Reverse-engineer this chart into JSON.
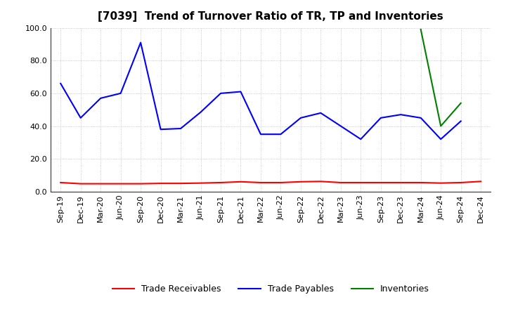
{
  "title": "[7039]  Trend of Turnover Ratio of TR, TP and Inventories",
  "x_labels": [
    "Sep-19",
    "Dec-19",
    "Mar-20",
    "Jun-20",
    "Sep-20",
    "Dec-20",
    "Mar-21",
    "Jun-21",
    "Sep-21",
    "Dec-21",
    "Mar-22",
    "Jun-22",
    "Sep-22",
    "Dec-22",
    "Mar-23",
    "Jun-23",
    "Sep-23",
    "Dec-23",
    "Mar-24",
    "Jun-24",
    "Sep-24",
    "Dec-24"
  ],
  "trade_receivables": [
    5.5,
    4.8,
    4.8,
    4.8,
    4.8,
    5.0,
    5.0,
    5.2,
    5.5,
    6.0,
    5.5,
    5.5,
    6.0,
    6.2,
    5.5,
    5.5,
    5.5,
    5.5,
    5.5,
    5.2,
    5.5,
    6.2
  ],
  "trade_payables": [
    66.0,
    45.0,
    57.0,
    60.0,
    91.0,
    38.0,
    38.5,
    48.5,
    60.0,
    61.0,
    35.0,
    35.0,
    45.0,
    48.0,
    40.0,
    32.0,
    45.0,
    47.0,
    45.0,
    32.0,
    43.0,
    null
  ],
  "inventories": [
    null,
    null,
    null,
    null,
    null,
    null,
    null,
    null,
    null,
    null,
    null,
    null,
    null,
    null,
    null,
    null,
    null,
    null,
    99.0,
    40.0,
    54.0,
    null
  ],
  "ylim": [
    0.0,
    100.0
  ],
  "yticks": [
    0.0,
    20.0,
    40.0,
    60.0,
    80.0,
    100.0
  ],
  "tr_color": "#ff0000",
  "tp_color": "#0000ff",
  "inv_color": "#008000",
  "legend_labels": [
    "Trade Receivables",
    "Trade Payables",
    "Inventories"
  ],
  "background_color": "#ffffff",
  "grid_color": "#aaaaaa",
  "title_fontsize": 11,
  "tick_fontsize": 8,
  "legend_fontsize": 9,
  "linewidth": 1.5
}
